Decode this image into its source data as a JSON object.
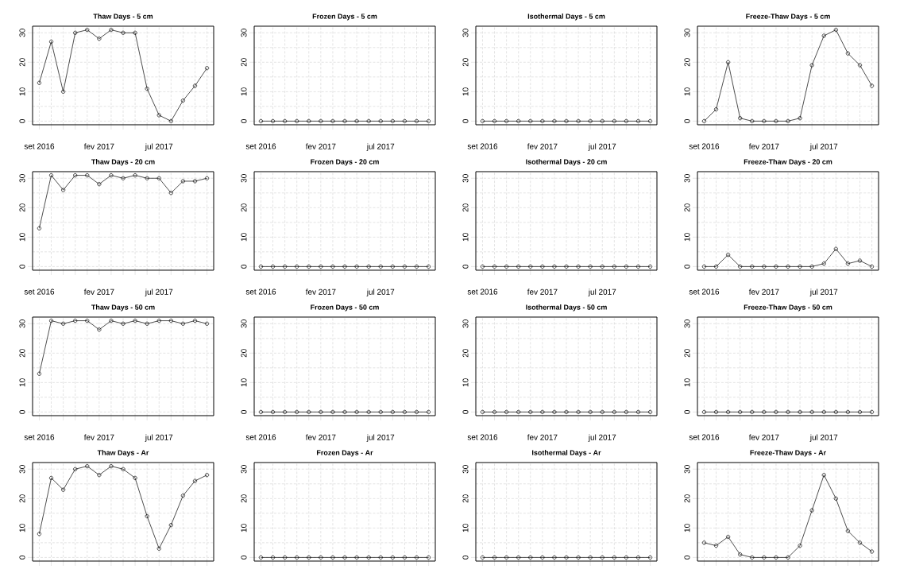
{
  "chart_data": [
    {
      "type": "line",
      "title": "Thaw Days - 5 cm",
      "categories": [
        "set 2016",
        null,
        null,
        null,
        null,
        "fev 2017",
        null,
        null,
        null,
        null,
        "jul 2017",
        null,
        null,
        null,
        null
      ],
      "values": [
        13,
        27,
        10,
        30,
        31,
        28,
        31,
        30,
        30,
        11,
        2,
        0,
        7,
        12,
        18
      ],
      "color": "#000000",
      "ylim": [
        -1.24,
        32.24
      ],
      "yticks": [
        0,
        10,
        20,
        30
      ],
      "grid": true,
      "marker": "circle"
    },
    {
      "type": "line",
      "title": "Frozen Days - 5 cm",
      "categories": [
        "set 2016",
        null,
        null,
        null,
        null,
        "fev 2017",
        null,
        null,
        null,
        null,
        "jul 2017",
        null,
        null,
        null,
        null
      ],
      "values": [
        0,
        0,
        0,
        0,
        0,
        0,
        0,
        0,
        0,
        0,
        0,
        0,
        0,
        0,
        0
      ],
      "color": "#000000",
      "ylim": [
        -1.24,
        32.24
      ],
      "yticks": [
        0,
        10,
        20,
        30
      ],
      "grid": true,
      "marker": "circle"
    },
    {
      "type": "line",
      "title": "Isothermal Days - 5 cm",
      "categories": [
        "set 2016",
        null,
        null,
        null,
        null,
        "fev 2017",
        null,
        null,
        null,
        null,
        "jul 2017",
        null,
        null,
        null,
        null
      ],
      "values": [
        0,
        0,
        0,
        0,
        0,
        0,
        0,
        0,
        0,
        0,
        0,
        0,
        0,
        0,
        0
      ],
      "color": "#000000",
      "ylim": [
        -1.24,
        32.24
      ],
      "yticks": [
        0,
        10,
        20,
        30
      ],
      "grid": true,
      "marker": "circle"
    },
    {
      "type": "line",
      "title": "Freeze-Thaw Days - 5 cm",
      "categories": [
        "set 2016",
        null,
        null,
        null,
        null,
        "fev 2017",
        null,
        null,
        null,
        null,
        "jul 2017",
        null,
        null,
        null,
        null
      ],
      "values": [
        0,
        4,
        20,
        1,
        0,
        0,
        0,
        0,
        1,
        19,
        29,
        31,
        23,
        19,
        12
      ],
      "color": "#000000",
      "ylim": [
        -1.24,
        32.24
      ],
      "yticks": [
        0,
        10,
        20,
        30
      ],
      "grid": true,
      "marker": "circle"
    },
    {
      "type": "line",
      "title": "Thaw Days - 20 cm",
      "categories": [
        "set 2016",
        null,
        null,
        null,
        null,
        "fev 2017",
        null,
        null,
        null,
        null,
        "jul 2017",
        null,
        null,
        null,
        null
      ],
      "values": [
        13,
        31,
        26,
        31,
        31,
        28,
        31,
        30,
        31,
        30,
        30,
        25,
        29,
        29,
        30
      ],
      "color": "#000000",
      "ylim": [
        -1.24,
        32.24
      ],
      "yticks": [
        0,
        10,
        20,
        30
      ],
      "grid": true,
      "marker": "circle"
    },
    {
      "type": "line",
      "title": "Frozen Days - 20 cm",
      "categories": [
        "set 2016",
        null,
        null,
        null,
        null,
        "fev 2017",
        null,
        null,
        null,
        null,
        "jul 2017",
        null,
        null,
        null,
        null
      ],
      "values": [
        0,
        0,
        0,
        0,
        0,
        0,
        0,
        0,
        0,
        0,
        0,
        0,
        0,
        0,
        0
      ],
      "color": "#000000",
      "ylim": [
        -1.24,
        32.24
      ],
      "yticks": [
        0,
        10,
        20,
        30
      ],
      "grid": true,
      "marker": "circle"
    },
    {
      "type": "line",
      "title": "Isothermal Days - 20 cm",
      "categories": [
        "set 2016",
        null,
        null,
        null,
        null,
        "fev 2017",
        null,
        null,
        null,
        null,
        "jul 2017",
        null,
        null,
        null,
        null
      ],
      "values": [
        0,
        0,
        0,
        0,
        0,
        0,
        0,
        0,
        0,
        0,
        0,
        0,
        0,
        0,
        0
      ],
      "color": "#000000",
      "ylim": [
        -1.24,
        32.24
      ],
      "yticks": [
        0,
        10,
        20,
        30
      ],
      "grid": true,
      "marker": "circle"
    },
    {
      "type": "line",
      "title": "Freeze-Thaw Days - 20 cm",
      "categories": [
        "set 2016",
        null,
        null,
        null,
        null,
        "fev 2017",
        null,
        null,
        null,
        null,
        "jul 2017",
        null,
        null,
        null,
        null
      ],
      "values": [
        0,
        0,
        4,
        0,
        0,
        0,
        0,
        0,
        0,
        0,
        1,
        6,
        1,
        2,
        0
      ],
      "color": "#000000",
      "ylim": [
        -1.24,
        32.24
      ],
      "yticks": [
        0,
        10,
        20,
        30
      ],
      "grid": true,
      "marker": "circle"
    },
    {
      "type": "line",
      "title": "Thaw Days - 50 cm",
      "categories": [
        "set 2016",
        null,
        null,
        null,
        null,
        "fev 2017",
        null,
        null,
        null,
        null,
        "jul 2017",
        null,
        null,
        null,
        null
      ],
      "values": [
        13,
        31,
        30,
        31,
        31,
        28,
        31,
        30,
        31,
        30,
        31,
        31,
        30,
        31,
        30
      ],
      "color": "#000000",
      "ylim": [
        -1.24,
        32.24
      ],
      "yticks": [
        0,
        10,
        20,
        30
      ],
      "grid": true,
      "marker": "circle"
    },
    {
      "type": "line",
      "title": "Frozen Days - 50 cm",
      "categories": [
        "set 2016",
        null,
        null,
        null,
        null,
        "fev 2017",
        null,
        null,
        null,
        null,
        "jul 2017",
        null,
        null,
        null,
        null
      ],
      "values": [
        0,
        0,
        0,
        0,
        0,
        0,
        0,
        0,
        0,
        0,
        0,
        0,
        0,
        0,
        0
      ],
      "color": "#000000",
      "ylim": [
        -1.24,
        32.24
      ],
      "yticks": [
        0,
        10,
        20,
        30
      ],
      "grid": true,
      "marker": "circle"
    },
    {
      "type": "line",
      "title": "Isothermal Days - 50 cm",
      "categories": [
        "set 2016",
        null,
        null,
        null,
        null,
        "fev 2017",
        null,
        null,
        null,
        null,
        "jul 2017",
        null,
        null,
        null,
        null
      ],
      "values": [
        0,
        0,
        0,
        0,
        0,
        0,
        0,
        0,
        0,
        0,
        0,
        0,
        0,
        0,
        0
      ],
      "color": "#000000",
      "ylim": [
        -1.24,
        32.24
      ],
      "yticks": [
        0,
        10,
        20,
        30
      ],
      "grid": true,
      "marker": "circle"
    },
    {
      "type": "line",
      "title": "Freeze-Thaw Days - 50 cm",
      "categories": [
        "set 2016",
        null,
        null,
        null,
        null,
        "fev 2017",
        null,
        null,
        null,
        null,
        "jul 2017",
        null,
        null,
        null,
        null
      ],
      "values": [
        0,
        0,
        0,
        0,
        0,
        0,
        0,
        0,
        0,
        0,
        0,
        0,
        0,
        0,
        0
      ],
      "color": "#000000",
      "ylim": [
        -1.24,
        32.24
      ],
      "yticks": [
        0,
        10,
        20,
        30
      ],
      "grid": true,
      "marker": "circle"
    },
    {
      "type": "line",
      "title": "Thaw Days - Ar",
      "categories": [
        null,
        null,
        null,
        null,
        null,
        null,
        null,
        null,
        null,
        null,
        null,
        null,
        null,
        null,
        null
      ],
      "values": [
        8,
        27,
        23,
        30,
        31,
        28,
        31,
        30,
        27,
        14,
        3,
        11,
        21,
        26,
        28
      ],
      "color": "#000000",
      "ylim": [
        -1.24,
        32.24
      ],
      "yticks": [
        0,
        10,
        20,
        30
      ],
      "grid": true,
      "marker": "circle",
      "tick_labels": "y"
    },
    {
      "type": "line",
      "title": "Frozen Days - Ar",
      "categories": [
        null,
        null,
        null,
        null,
        null,
        null,
        null,
        null,
        null,
        null,
        null,
        null,
        null,
        null,
        null
      ],
      "values": [
        0,
        0,
        0,
        0,
        0,
        0,
        0,
        0,
        0,
        0,
        0,
        0,
        0,
        0,
        0
      ],
      "color": "#000000",
      "ylim": [
        -1.24,
        32.24
      ],
      "yticks": [
        0,
        10,
        20,
        30
      ],
      "grid": true,
      "marker": "circle",
      "tick_labels": "y"
    },
    {
      "type": "line",
      "title": "Isothermal Days - Ar",
      "categories": [
        null,
        null,
        null,
        null,
        null,
        null,
        null,
        null,
        null,
        null,
        null,
        null,
        null,
        null,
        null
      ],
      "values": [
        0,
        0,
        0,
        0,
        0,
        0,
        0,
        0,
        0,
        0,
        0,
        0,
        0,
        0,
        0
      ],
      "color": "#000000",
      "ylim": [
        -1.24,
        32.24
      ],
      "yticks": [
        0,
        10,
        20,
        30
      ],
      "grid": true,
      "marker": "circle",
      "tick_labels": "y"
    },
    {
      "type": "line",
      "title": "Freeze-Thaw Days - Ar",
      "categories": [
        null,
        null,
        null,
        null,
        null,
        null,
        null,
        null,
        null,
        null,
        null,
        null,
        null,
        null,
        null
      ],
      "values": [
        5,
        4,
        7,
        1,
        0,
        0,
        0,
        0,
        4,
        16,
        28,
        20,
        9,
        5,
        2
      ],
      "color": "#000000",
      "ylim": [
        -1.24,
        32.24
      ],
      "yticks": [
        0,
        10,
        20,
        30
      ],
      "grid": true,
      "marker": "circle",
      "tick_labels": "y"
    }
  ]
}
